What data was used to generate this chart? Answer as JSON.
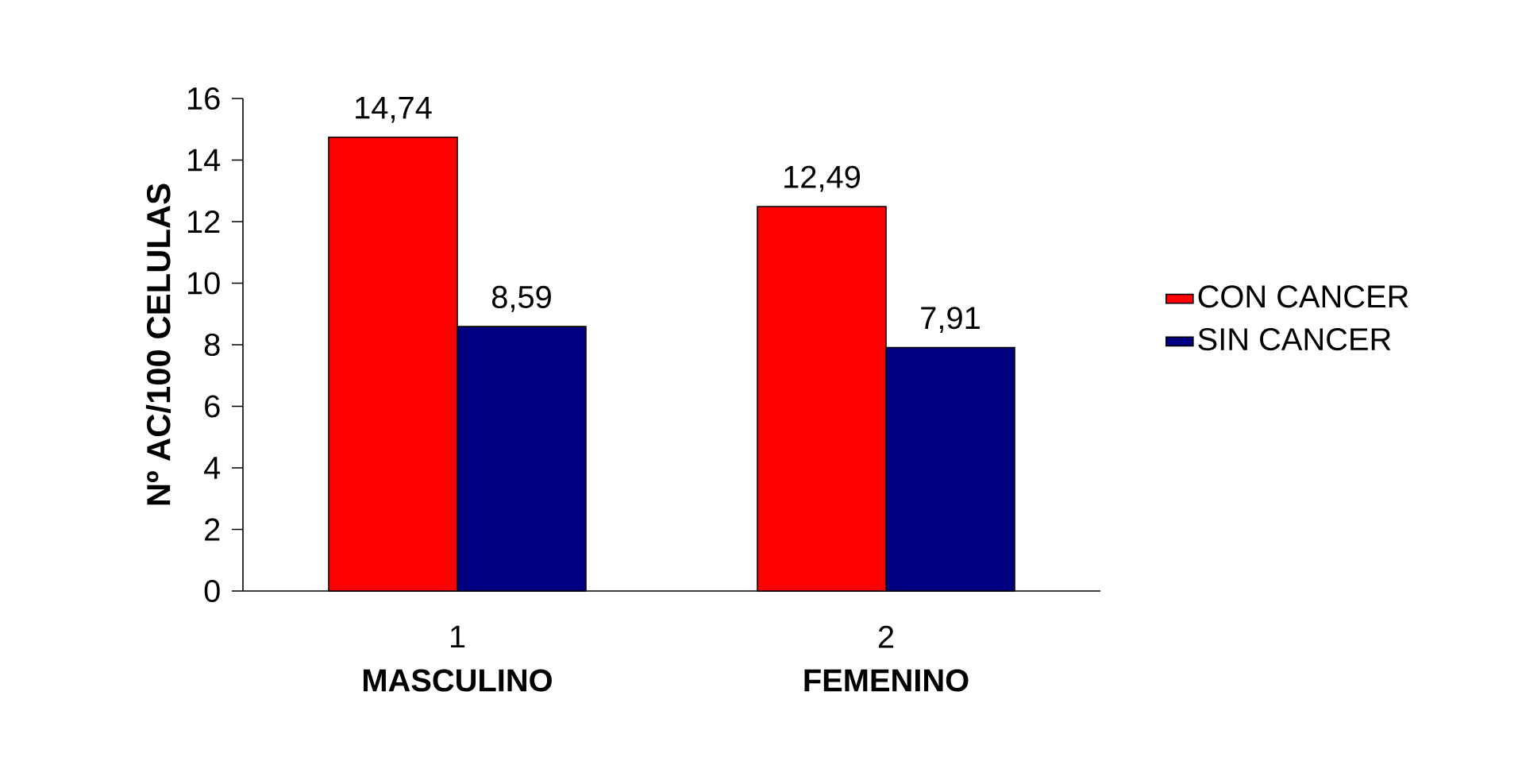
{
  "chart_data": {
    "type": "bar",
    "ylabel": "Nº AC/100 CELULAS",
    "categories": [
      "1",
      "2"
    ],
    "annotations": [
      "MASCULINO",
      "FEMENINO"
    ],
    "series": [
      {
        "name": "CON CANCER",
        "color": "#ff0000",
        "values": [
          14.74,
          12.49
        ],
        "value_labels": [
          "14,74",
          "12,49"
        ]
      },
      {
        "name": "SIN CANCER",
        "color": "#000080",
        "values": [
          8.59,
          7.91
        ],
        "value_labels": [
          "8,59",
          "7,91"
        ]
      }
    ],
    "ylim": [
      0,
      16
    ],
    "yticks": [
      0,
      2,
      4,
      6,
      8,
      10,
      12,
      14,
      16
    ],
    "grid": false,
    "legend": "right"
  }
}
